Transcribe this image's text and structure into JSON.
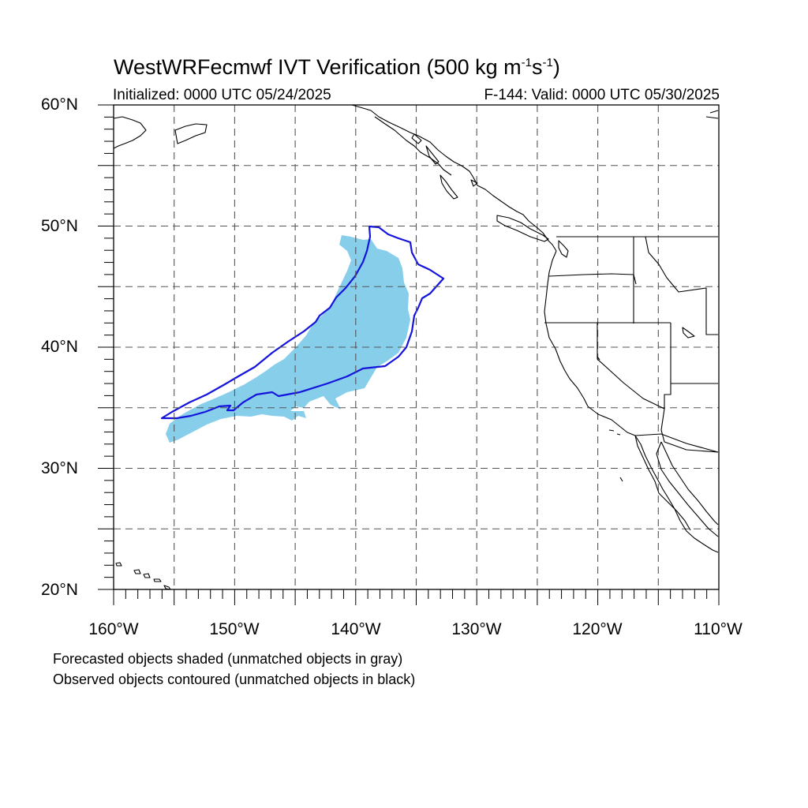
{
  "title": {
    "prefix": "WestWRFecmwf IVT Verification (500 kg m",
    "exp1": "-1",
    "middle": "s",
    "exp2": "-1",
    "suffix": ")"
  },
  "initialized": "Initialized: 0000 UTC 05/24/2025",
  "valid": "F-144: Valid: 0000 UTC 05/30/2025",
  "lat_labels": [
    "60°N",
    "50°N",
    "40°N",
    "30°N",
    "20°N"
  ],
  "lon_labels": [
    "160°W",
    "150°W",
    "140°W",
    "130°W",
    "120°W",
    "110°W"
  ],
  "legend": {
    "forecast": "Forecasted objects shaded (unmatched objects in gray)",
    "observed": "Observed objects contoured (unmatched objects in black)"
  },
  "colors": {
    "forecast_fill": "#87ceeb",
    "observed_contour": "#1414dc",
    "coastline": "#000000",
    "grid": "#555555"
  },
  "map_extent": {
    "lon_min": -160,
    "lon_max": -110,
    "lat_min": 20,
    "lat_max": 60
  }
}
